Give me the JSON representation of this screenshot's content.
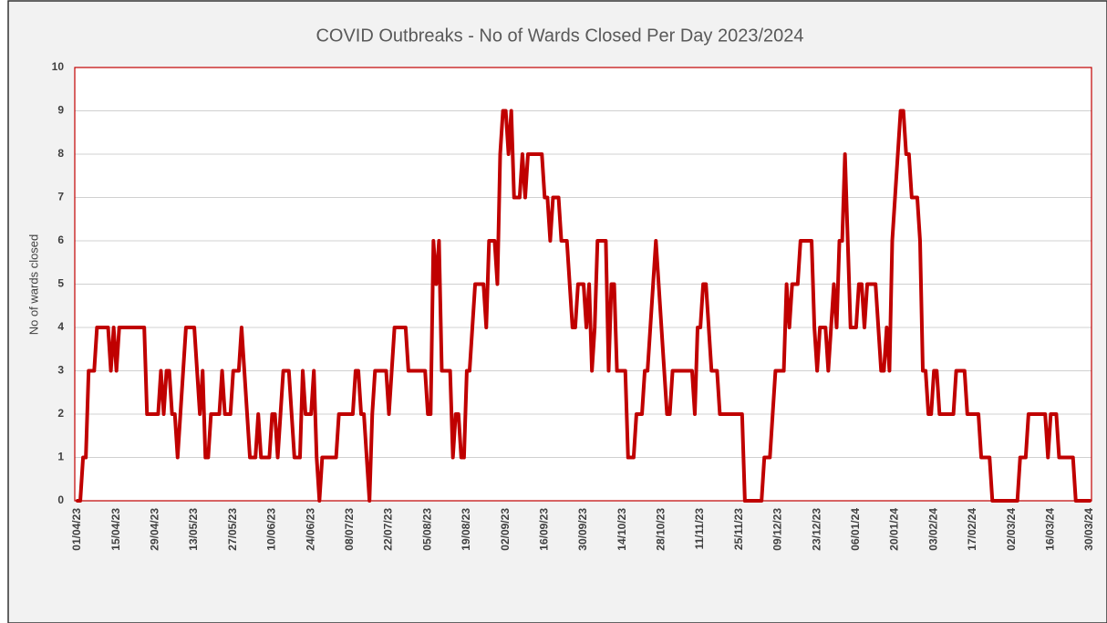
{
  "chart_data": {
    "type": "line",
    "title": "COVID Outbreaks - No of Wards Closed Per Day 2023/2024",
    "y_label": "No of wards closed",
    "color": "#c00000",
    "grid": true,
    "ylim": [
      0,
      10
    ],
    "yticks": [
      0,
      1,
      2,
      3,
      4,
      5,
      6,
      7,
      8,
      9,
      10
    ],
    "categories": [
      "01/04/23",
      null,
      null,
      null,
      null,
      null,
      null,
      null,
      null,
      null,
      null,
      null,
      null,
      null,
      "15/04/23",
      null,
      null,
      null,
      null,
      null,
      null,
      null,
      null,
      null,
      null,
      null,
      null,
      null,
      "29/04/23",
      null,
      null,
      null,
      null,
      null,
      null,
      null,
      null,
      null,
      null,
      null,
      null,
      null,
      "13/05/23",
      null,
      null,
      null,
      null,
      null,
      null,
      null,
      null,
      null,
      null,
      null,
      null,
      null,
      "27/05/23",
      null,
      null,
      null,
      null,
      null,
      null,
      null,
      null,
      null,
      null,
      null,
      null,
      null,
      "10/06/23",
      null,
      null,
      null,
      null,
      null,
      null,
      null,
      null,
      null,
      null,
      null,
      null,
      null,
      "24/06/23",
      null,
      null,
      null,
      null,
      null,
      null,
      null,
      null,
      null,
      null,
      null,
      null,
      null,
      "08/07/23",
      null,
      null,
      null,
      null,
      null,
      null,
      null,
      null,
      null,
      null,
      null,
      null,
      null,
      "22/07/23",
      null,
      null,
      null,
      null,
      null,
      null,
      null,
      null,
      null,
      null,
      null,
      null,
      null,
      "05/08/23",
      null,
      null,
      null,
      null,
      null,
      null,
      null,
      null,
      null,
      null,
      null,
      null,
      null,
      "19/08/23",
      null,
      null,
      null,
      null,
      null,
      null,
      null,
      null,
      null,
      null,
      null,
      null,
      null,
      "02/09/23",
      null,
      null,
      null,
      null,
      null,
      null,
      null,
      null,
      null,
      null,
      null,
      null,
      null,
      "16/09/23",
      null,
      null,
      null,
      null,
      null,
      null,
      null,
      null,
      null,
      null,
      null,
      null,
      null,
      "30/09/23",
      null,
      null,
      null,
      null,
      null,
      null,
      null,
      null,
      null,
      null,
      null,
      null,
      null,
      "14/10/23",
      null,
      null,
      null,
      null,
      null,
      null,
      null,
      null,
      null,
      null,
      null,
      null,
      null,
      "28/10/23",
      null,
      null,
      null,
      null,
      null,
      null,
      null,
      null,
      null,
      null,
      null,
      null,
      null,
      "11/11/23",
      null,
      null,
      null,
      null,
      null,
      null,
      null,
      null,
      null,
      null,
      null,
      null,
      null,
      "25/11/23",
      null,
      null,
      null,
      null,
      null,
      null,
      null,
      null,
      null,
      null,
      null,
      null,
      null,
      "09/12/23",
      null,
      null,
      null,
      null,
      null,
      null,
      null,
      null,
      null,
      null,
      null,
      null,
      null,
      "23/12/23",
      null,
      null,
      null,
      null,
      null,
      null,
      null,
      null,
      null,
      null,
      null,
      null,
      null,
      "06/01/24",
      null,
      null,
      null,
      null,
      null,
      null,
      null,
      null,
      null,
      null,
      null,
      null,
      null,
      "20/01/24",
      null,
      null,
      null,
      null,
      null,
      null,
      null,
      null,
      null,
      null,
      null,
      null,
      null,
      "03/02/24",
      null,
      null,
      null,
      null,
      null,
      null,
      null,
      null,
      null,
      null,
      null,
      null,
      null,
      "17/02/24",
      null,
      null,
      null,
      null,
      null,
      null,
      null,
      null,
      null,
      null,
      null,
      null,
      null,
      "02/03/24",
      null,
      null,
      null,
      null,
      null,
      null,
      null,
      null,
      null,
      null,
      null,
      null,
      null,
      "16/03/24",
      null,
      null,
      null,
      null,
      null,
      null,
      null,
      null,
      null,
      null,
      null,
      null,
      null,
      "30/03/24"
    ],
    "values": [
      0,
      0,
      1,
      1,
      3,
      3,
      3,
      4,
      4,
      4,
      4,
      4,
      3,
      4,
      3,
      4,
      4,
      4,
      4,
      4,
      4,
      4,
      4,
      4,
      4,
      2,
      2,
      2,
      2,
      2,
      3,
      2,
      3,
      3,
      2,
      2,
      1,
      2,
      3,
      4,
      4,
      4,
      4,
      3,
      2,
      3,
      1,
      1,
      2,
      2,
      2,
      2,
      3,
      2,
      2,
      2,
      3,
      3,
      3,
      4,
      3,
      2,
      1,
      1,
      1,
      2,
      1,
      1,
      1,
      1,
      2,
      2,
      1,
      2,
      3,
      3,
      3,
      2,
      1,
      1,
      1,
      3,
      2,
      2,
      2,
      3,
      1,
      0,
      1,
      1,
      1,
      1,
      1,
      1,
      2,
      2,
      2,
      2,
      2,
      2,
      3,
      3,
      2,
      2,
      1,
      0,
      2,
      3,
      3,
      3,
      3,
      3,
      2,
      3,
      4,
      4,
      4,
      4,
      4,
      3,
      3,
      3,
      3,
      3,
      3,
      3,
      2,
      2,
      6,
      5,
      6,
      3,
      3,
      3,
      3,
      1,
      2,
      2,
      1,
      1,
      3,
      3,
      4,
      5,
      5,
      5,
      5,
      4,
      6,
      6,
      6,
      5,
      8,
      9,
      9,
      8,
      9,
      7,
      7,
      7,
      8,
      7,
      8,
      8,
      8,
      8,
      8,
      8,
      7,
      7,
      6,
      7,
      7,
      7,
      6,
      6,
      6,
      5,
      4,
      4,
      5,
      5,
      5,
      4,
      5,
      3,
      4,
      6,
      6,
      6,
      6,
      3,
      5,
      5,
      3,
      3,
      3,
      3,
      1,
      1,
      1,
      2,
      2,
      2,
      3,
      3,
      4,
      5,
      6,
      5,
      4,
      3,
      2,
      2,
      3,
      3,
      3,
      3,
      3,
      3,
      3,
      3,
      2,
      4,
      4,
      5,
      5,
      4,
      3,
      3,
      3,
      2,
      2,
      2,
      2,
      2,
      2,
      2,
      2,
      2,
      0,
      0,
      0,
      0,
      0,
      0,
      0,
      1,
      1,
      1,
      2,
      3,
      3,
      3,
      3,
      5,
      4,
      5,
      5,
      5,
      6,
      6,
      6,
      6,
      6,
      4,
      3,
      4,
      4,
      4,
      3,
      4,
      5,
      4,
      6,
      6,
      8,
      6,
      4,
      4,
      4,
      5,
      5,
      4,
      5,
      5,
      5,
      5,
      4,
      3,
      3,
      4,
      3,
      6,
      7,
      8,
      9,
      9,
      8,
      8,
      7,
      7,
      7,
      6,
      3,
      3,
      2,
      2,
      3,
      3,
      2,
      2,
      2,
      2,
      2,
      2,
      3,
      3,
      3,
      3,
      2,
      2,
      2,
      2,
      2,
      1,
      1,
      1,
      1,
      0,
      0,
      0,
      0,
      0,
      0,
      0,
      0,
      0,
      0,
      1,
      1,
      1,
      2,
      2,
      2,
      2,
      2,
      2,
      2,
      1,
      2,
      2,
      2,
      1,
      1,
      1,
      1,
      1,
      1,
      0,
      0,
      0,
      0,
      0,
      0
    ]
  }
}
